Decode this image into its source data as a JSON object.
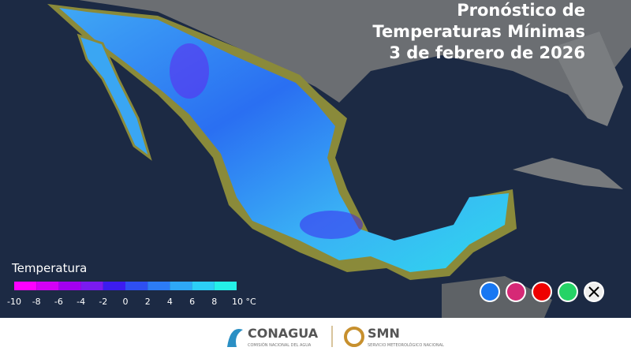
{
  "header": {
    "title_lines": [
      "Pronóstico de",
      "Temperaturas Mínimas",
      "3 de febrero de 2026"
    ]
  },
  "legend": {
    "title": "Temperatura",
    "ticks": [
      -10,
      -8,
      -6,
      -4,
      -2,
      0,
      2,
      4,
      6,
      8,
      {
        "value": 10,
        "label": "10 °C"
      }
    ],
    "colors": [
      "#ff00ff",
      "#d400f5",
      "#a300f0",
      "#7a1bf0",
      "#3c1cf0",
      "#2e4ff2",
      "#2c7cf5",
      "#2ea8f7",
      "#2ccff7",
      "#24f0e8"
    ]
  },
  "footer": {
    "org1": "CONAGUA",
    "org1_sub": "COMISIÓN NACIONAL DEL AGUA",
    "org2": "SMN",
    "org2_sub": "SERVICIO METEOROLÓGICO NACIONAL"
  }
}
